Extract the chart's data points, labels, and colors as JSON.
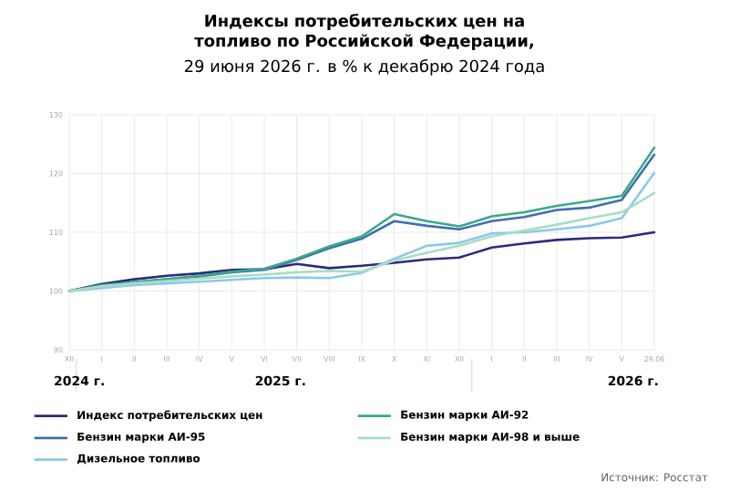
{
  "chart_data": {
    "type": "line",
    "title": "Индексы потребительских цен на топливо по Российской Федерации,",
    "subtitle": "29 июня 2026 г. в % к декабрю 2024 года",
    "categories": [
      "XII",
      "I",
      "II",
      "III",
      "IV",
      "V",
      "VI",
      "VII",
      "VIII",
      "IX",
      "X",
      "XI",
      "XII",
      "I",
      "II",
      "III",
      "IV",
      "V",
      "29.06"
    ],
    "series": [
      {
        "name": "Индекс потребительских цен",
        "color": "#2b2a7e",
        "values": [
          100,
          101.2,
          102,
          102.6,
          103,
          103.6,
          103.7,
          104.6,
          103.9,
          104.3,
          104.8,
          105.4,
          105.7,
          107.4,
          108.1,
          108.7,
          109,
          109.1,
          110
        ]
      },
      {
        "name": "Бензин марки АИ-95",
        "color": "#3f6fb0",
        "values": [
          100,
          101,
          101.5,
          102,
          102.5,
          103.2,
          103.6,
          105.3,
          107.3,
          108.9,
          111.9,
          111.1,
          110.5,
          111.9,
          112.6,
          113.8,
          114.2,
          115.5,
          123.2
        ]
      },
      {
        "name": "Дизельное топливо",
        "color": "#8cc8ea",
        "values": [
          100,
          100.5,
          101,
          101.3,
          101.6,
          101.9,
          102.2,
          102.3,
          102.2,
          103.1,
          105.5,
          107.7,
          108.2,
          109.8,
          110,
          110.5,
          111.1,
          112.4,
          120.1
        ]
      },
      {
        "name": "Бензин марки АИ-92",
        "color": "#3aa98a",
        "values": [
          100,
          101,
          101.5,
          102,
          102.6,
          103.3,
          103.8,
          105.5,
          107.6,
          109.3,
          113.1,
          111.9,
          111,
          112.7,
          113.4,
          114.5,
          115.3,
          116.2,
          124.4
        ]
      },
      {
        "name": "Бензин марки АИ-98 и выше",
        "color": "#a8dcc4",
        "values": [
          100,
          100.8,
          101.3,
          101.7,
          102.1,
          102.5,
          102.8,
          103.2,
          103.4,
          103.3,
          105.2,
          106.5,
          107.7,
          109.3,
          110.3,
          111.3,
          112.4,
          113.4,
          116.7
        ]
      }
    ],
    "ylim": [
      90,
      130
    ],
    "yticks": [
      90,
      100,
      110,
      120,
      130
    ],
    "grid": true,
    "legend": "bottom",
    "marker": "none",
    "line_style": "solid",
    "annotations": [
      "2024 г.",
      "2025 г.",
      "2026 г.",
      "Источник: Росстат"
    ]
  }
}
